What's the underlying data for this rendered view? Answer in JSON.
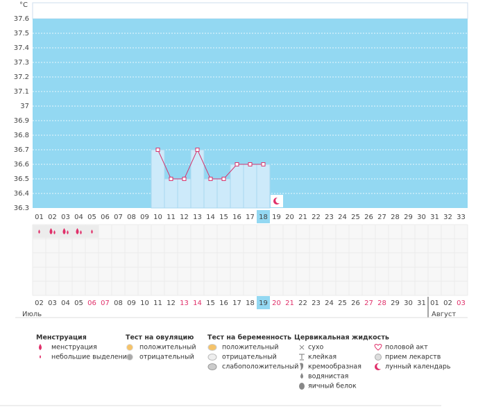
{
  "chart_data": {
    "type": "line",
    "unit": "°C",
    "categories": [
      "01",
      "02",
      "03",
      "04",
      "05",
      "06",
      "07",
      "08",
      "09",
      "10",
      "11",
      "12",
      "13",
      "14",
      "15",
      "16",
      "17",
      "18",
      "19",
      "20",
      "21",
      "22",
      "23",
      "24",
      "25",
      "26",
      "27",
      "28",
      "29",
      "30",
      "31",
      "32",
      "33"
    ],
    "dates": [
      "02",
      "03",
      "04",
      "05",
      "06",
      "07",
      "08",
      "09",
      "10",
      "11",
      "12",
      "13",
      "14",
      "15",
      "16",
      "17",
      "18",
      "19",
      "20",
      "21",
      "22",
      "23",
      "24",
      "25",
      "26",
      "27",
      "28",
      "29",
      "30",
      "31",
      "01",
      "02",
      "03"
    ],
    "weekend": [
      false,
      false,
      false,
      false,
      true,
      true,
      false,
      false,
      false,
      false,
      false,
      true,
      true,
      false,
      false,
      false,
      false,
      false,
      true,
      true,
      false,
      false,
      false,
      false,
      false,
      true,
      true,
      false,
      false,
      false,
      false,
      false,
      true
    ],
    "highlight_day": "18",
    "highlight_date": "19",
    "months": [
      "Июль",
      "Август"
    ],
    "values": [
      null,
      null,
      null,
      null,
      null,
      null,
      null,
      null,
      null,
      36.7,
      36.5,
      36.5,
      36.7,
      36.5,
      36.5,
      36.6,
      36.6,
      36.6,
      null,
      null,
      null,
      null,
      null,
      null,
      null,
      null,
      null,
      null,
      null,
      null,
      null,
      null,
      null
    ],
    "menstruation": [
      "light",
      "heavy",
      "heavy",
      "heavy",
      "light"
    ],
    "ylim": [
      36.3,
      37.6
    ],
    "yticks": [
      37.6,
      37.5,
      37.4,
      37.3,
      37.2,
      37.1,
      37,
      36.9,
      36.8,
      36.7,
      36.6,
      36.5,
      36.4,
      36.3
    ],
    "color": "#d6336c",
    "grid": true
  },
  "legend": {
    "groups": [
      {
        "title": "Менструация",
        "items": [
          "менструация",
          "небольшие выделения"
        ]
      },
      {
        "title": "Тест на овуляцию",
        "items": [
          "положительный",
          "отрицательный"
        ]
      },
      {
        "title": "Тест на беременность",
        "items": [
          "положительный",
          "отрицательный",
          "слабоположительный"
        ]
      },
      {
        "title": "Цервикальная жидкость",
        "items": [
          "сухо",
          "клейкая",
          "кремообразная",
          "водянистая",
          "яичный белок"
        ]
      }
    ],
    "other": [
      "половой акт",
      "прием лекарств",
      "лунный календарь"
    ]
  }
}
